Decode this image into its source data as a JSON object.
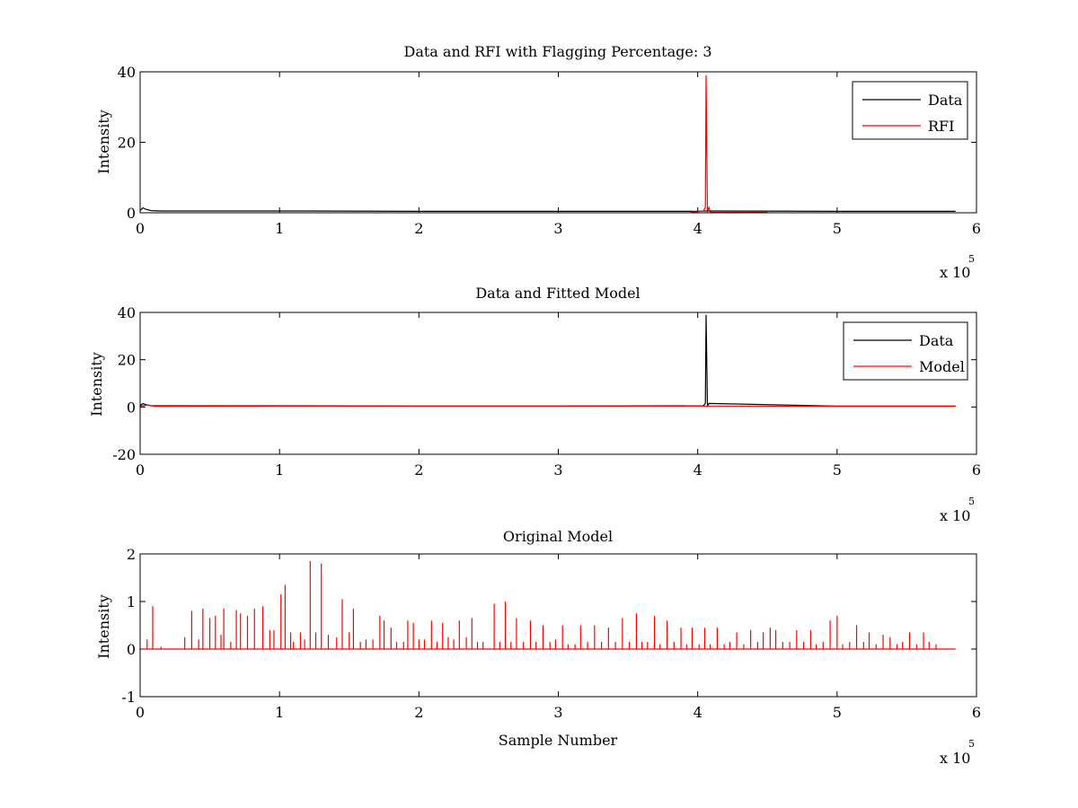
{
  "figure": {
    "background": "#ffffff"
  },
  "chart_data": [
    {
      "type": "line",
      "title": "Data and RFI with Flagging Percentage: 3",
      "xlabel": "",
      "ylabel": "Intensity",
      "xlim": [
        0,
        600000
      ],
      "ylim": [
        0,
        40
      ],
      "x_ticks": [
        "0",
        "1",
        "2",
        "3",
        "4",
        "5",
        "6"
      ],
      "y_ticks": [
        "0",
        "20",
        "40"
      ],
      "x_multiplier": {
        "prefix": "x 10",
        "exponent": "5"
      },
      "legend": {
        "placement": "top-right",
        "entries": [
          "Data",
          "RFI"
        ]
      },
      "series": [
        {
          "name": "Data",
          "color": "#000000",
          "description_values": "near-constant baseline around 0.5 across 0 to 585000",
          "x": [
            0,
            2000,
            4000,
            8000,
            15000,
            60000,
            120000,
            200000,
            300000,
            400000,
            405000,
            410000,
            500000,
            585000
          ],
          "y": [
            0.6,
            1.4,
            1.0,
            0.6,
            0.5,
            0.5,
            0.5,
            0.4,
            0.4,
            0.4,
            0.5,
            0.5,
            0.4,
            0.4
          ]
        },
        {
          "name": "RFI",
          "color": "#ff0000",
          "x": [
            395000,
            400000,
            404000,
            405500,
            406000,
            407000,
            408000,
            409000,
            410000,
            450000
          ],
          "y": [
            0.2,
            0.3,
            0.5,
            1.5,
            39,
            0.2,
            1.5,
            0.3,
            0.1,
            0.1
          ]
        }
      ]
    },
    {
      "type": "line",
      "title": "Data and Fitted Model",
      "xlabel": "",
      "ylabel": "Intensity",
      "xlim": [
        0,
        600000
      ],
      "ylim": [
        -20,
        40
      ],
      "x_ticks": [
        "0",
        "1",
        "2",
        "3",
        "4",
        "5",
        "6"
      ],
      "y_ticks": [
        "-20",
        "0",
        "20",
        "40"
      ],
      "x_multiplier": {
        "prefix": "x 10",
        "exponent": "5"
      },
      "legend": {
        "placement": "top-right",
        "entries": [
          "Data",
          "Model"
        ]
      },
      "series": [
        {
          "name": "Data",
          "color": "#000000",
          "x": [
            0,
            2000,
            4000,
            8000,
            15000,
            100000,
            200000,
            300000,
            404000,
            405500,
            406000,
            407000,
            408000,
            500000,
            585000
          ],
          "y": [
            0.6,
            1.4,
            1.0,
            0.6,
            0.5,
            0.5,
            0.4,
            0.4,
            0.5,
            1.5,
            39,
            0.5,
            1.5,
            0.4,
            0.4
          ]
        },
        {
          "name": "Model",
          "color": "#ff0000",
          "x": [
            0,
            5000,
            10000,
            100000,
            200000,
            300000,
            400000,
            500000,
            585000
          ],
          "y": [
            0.3,
            0.8,
            0.3,
            0.4,
            0.4,
            0.4,
            0.4,
            0.3,
            0.3
          ]
        }
      ]
    },
    {
      "type": "line",
      "title": "Original Model",
      "xlabel": "Sample Number",
      "ylabel": "Intensity",
      "xlim": [
        0,
        600000
      ],
      "ylim": [
        -1,
        2
      ],
      "x_ticks": [
        "0",
        "1",
        "2",
        "3",
        "4",
        "5",
        "6"
      ],
      "y_ticks": [
        "-1",
        "0",
        "1",
        "2"
      ],
      "x_multiplier": {
        "prefix": "x 10",
        "exponent": "5"
      },
      "series": [
        {
          "name": "",
          "color": "#ff0000",
          "baseline": 0,
          "baseline_range": [
            0,
            585000
          ],
          "peaks_x": [
            5000,
            9000,
            15000,
            32000,
            37000,
            42000,
            45000,
            50000,
            54000,
            58000,
            60000,
            65000,
            69000,
            72000,
            77000,
            82000,
            88000,
            93000,
            96000,
            101000,
            104000,
            108000,
            110000,
            115000,
            118000,
            122000,
            126000,
            130000,
            135000,
            141000,
            145000,
            150000,
            153000,
            158000,
            162000,
            167000,
            172000,
            175000,
            180000,
            184000,
            189000,
            192000,
            196000,
            200000,
            204000,
            209000,
            213000,
            217000,
            221000,
            225000,
            229000,
            234000,
            238000,
            242000,
            246000,
            254000,
            258000,
            262000,
            266000,
            270000,
            275000,
            280000,
            284000,
            289000,
            294000,
            298000,
            303000,
            307000,
            312000,
            316000,
            321000,
            326000,
            331000,
            336000,
            341000,
            346000,
            351000,
            356000,
            360000,
            364000,
            369000,
            373000,
            378000,
            383000,
            388000,
            392000,
            396000,
            401000,
            405000,
            409000,
            414000,
            419000,
            423000,
            428000,
            433000,
            438000,
            443000,
            447000,
            452000,
            456000,
            461000,
            466000,
            471000,
            476000,
            481000,
            485000,
            490000,
            495000,
            500000,
            504000,
            509000,
            514000,
            519000,
            523000,
            528000,
            533000,
            538000,
            543000,
            547000,
            552000,
            557000,
            562000,
            566000,
            571000
          ],
          "peaks_y": [
            0.2,
            0.9,
            0.05,
            0.25,
            0.8,
            0.2,
            0.85,
            0.65,
            0.7,
            0.3,
            0.85,
            0.15,
            0.82,
            0.75,
            0.7,
            0.85,
            0.9,
            0.4,
            0.4,
            1.15,
            1.35,
            0.35,
            0.15,
            0.35,
            0.2,
            1.85,
            0.35,
            1.8,
            0.3,
            0.25,
            1.05,
            0.35,
            0.85,
            0.15,
            0.2,
            0.2,
            0.7,
            0.6,
            0.45,
            0.15,
            0.15,
            0.6,
            0.55,
            0.2,
            0.2,
            0.6,
            0.15,
            0.55,
            0.25,
            0.2,
            0.6,
            0.25,
            0.65,
            0.15,
            0.15,
            0.95,
            0.15,
            1.0,
            0.15,
            0.65,
            0.15,
            0.6,
            0.15,
            0.5,
            0.15,
            0.2,
            0.5,
            0.1,
            0.1,
            0.5,
            0.15,
            0.5,
            0.15,
            0.45,
            0.15,
            0.65,
            0.15,
            0.75,
            0.15,
            0.15,
            0.7,
            0.1,
            0.6,
            0.15,
            0.45,
            0.1,
            0.45,
            0.1,
            0.45,
            0.1,
            0.45,
            0.1,
            0.15,
            0.35,
            0.1,
            0.4,
            0.15,
            0.35,
            0.45,
            0.4,
            0.15,
            0.15,
            0.4,
            0.15,
            0.4,
            0.1,
            0.15,
            0.6,
            0.7,
            0.1,
            0.15,
            0.5,
            0.15,
            0.35,
            0.1,
            0.3,
            0.25,
            0.1,
            0.15,
            0.35,
            0.1,
            0.35,
            0.15,
            0.1
          ]
        }
      ]
    }
  ]
}
